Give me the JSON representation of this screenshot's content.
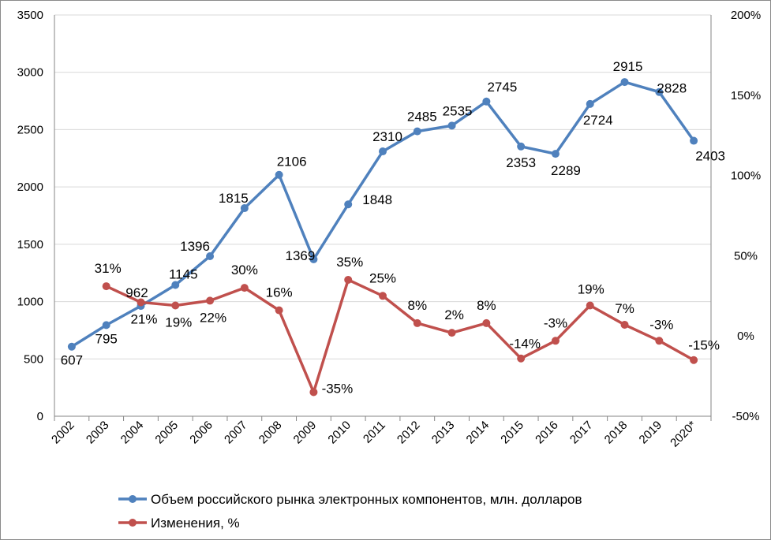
{
  "chart_data": {
    "type": "line",
    "title": "",
    "x": [
      "2002",
      "2003",
      "2004",
      "2005",
      "2006",
      "2007",
      "2008",
      "2009",
      "2010",
      "2011",
      "2012",
      "2013",
      "2014",
      "2015",
      "2016",
      "2017",
      "2018",
      "2019",
      "2020*"
    ],
    "y_left": {
      "ylim": [
        0,
        3500
      ],
      "ticks": [
        "0",
        "500",
        "1000",
        "1500",
        "2000",
        "2500",
        "3000",
        "3500"
      ],
      "tick_values": [
        0,
        500,
        1000,
        1500,
        2000,
        2500,
        3000,
        3500
      ]
    },
    "y_right": {
      "ylim": [
        -50,
        200
      ],
      "ticks": [
        "-50%",
        "0%",
        "50%",
        "100%",
        "150%",
        "200%"
      ],
      "tick_values": [
        -50,
        0,
        50,
        100,
        150,
        200
      ]
    },
    "gridlines": true,
    "legend_position": "bottom",
    "series": [
      {
        "name": "Объем российского рынка электронных компонентов, млн. долларов",
        "axis": "left",
        "color": "#4f81bd",
        "values": [
          607,
          795,
          962,
          1145,
          1396,
          1815,
          2106,
          1369,
          1848,
          2310,
          2485,
          2535,
          2745,
          2353,
          2289,
          2724,
          2915,
          2828,
          2403
        ],
        "labels": [
          "607",
          "795",
          "962",
          "1145",
          "1396",
          "1815",
          "2106",
          "1369",
          "1848",
          "2310",
          "2485",
          "2535",
          "2745",
          "2353",
          "2289",
          "2724",
          "2915",
          "2828",
          "2403"
        ]
      },
      {
        "name": "Изменения, %",
        "axis": "right",
        "color": "#c0504d",
        "values": [
          null,
          31,
          21,
          19,
          22,
          30,
          16,
          -35,
          35,
          25,
          8,
          2,
          8,
          -14,
          -3,
          19,
          7,
          -3,
          -15
        ],
        "labels": [
          "",
          "31%",
          "21%",
          "19%",
          "22%",
          "30%",
          "16%",
          "-35%",
          "35%",
          "25%",
          "8%",
          "2%",
          "8%",
          "-14%",
          "-3%",
          "19%",
          "7%",
          "-3%",
          "-15%"
        ]
      }
    ]
  }
}
